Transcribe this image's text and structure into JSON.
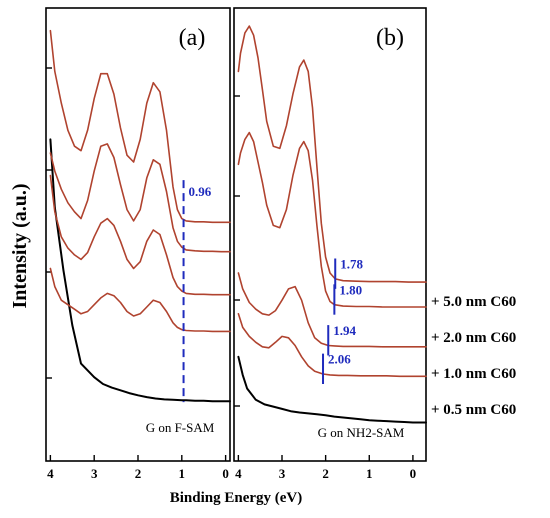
{
  "figure": {
    "ylabel": "Intensity (a.u.)",
    "xlabel": "Binding Energy (eV)",
    "thickness_labels": [
      "+ 5.0 nm C60",
      "+ 2.0 nm C60",
      "+ 1.0 nm C60",
      "+ 0.5 nm C60"
    ]
  },
  "colors": {
    "spectrum": "#b0432f",
    "substrate": "#000000",
    "onset_marker": "#1f2bbd"
  },
  "chart_data": [
    {
      "type": "line",
      "panel_label": "(a)",
      "substrate_label": "G on F-SAM",
      "xlabel": "Binding Energy (eV)",
      "ylabel": "Intensity (a.u.)",
      "xlim": [
        4.1,
        -0.1
      ],
      "x_reversed": true,
      "x_ticks": [
        4,
        3,
        2,
        1,
        0
      ],
      "ylim": [
        0,
        10
      ],
      "grid": false,
      "series": [
        {
          "x": [
            4.0,
            3.9,
            3.7,
            3.5,
            3.3,
            3.0,
            2.8,
            2.6,
            2.4,
            2.2,
            2.0,
            1.8,
            1.6,
            1.4,
            1.2,
            1.0,
            0.9,
            0.7,
            0.5,
            0.3,
            0.1,
            -0.1
          ],
          "y": [
            7.1,
            5.6,
            4.2,
            3.0,
            2.15,
            1.85,
            1.7,
            1.62,
            1.56,
            1.5,
            1.45,
            1.41,
            1.38,
            1.36,
            1.35,
            1.34,
            1.34,
            1.33,
            1.33,
            1.32,
            1.32,
            1.32
          ]
        },
        {
          "x": [
            4.0,
            3.9,
            3.75,
            3.6,
            3.45,
            3.3,
            3.15,
            3.0,
            2.85,
            2.7,
            2.55,
            2.4,
            2.25,
            2.1,
            1.95,
            1.8,
            1.65,
            1.5,
            1.35,
            1.2,
            1.1,
            1.0,
            0.9,
            0.7,
            0.5,
            0.3,
            0.1,
            -0.1
          ],
          "y": [
            4.25,
            3.85,
            3.55,
            3.45,
            3.35,
            3.25,
            3.3,
            3.45,
            3.6,
            3.7,
            3.65,
            3.5,
            3.3,
            3.2,
            3.25,
            3.4,
            3.55,
            3.5,
            3.3,
            3.05,
            2.95,
            2.9,
            2.88,
            2.87,
            2.87,
            2.86,
            2.86,
            2.86
          ]
        },
        {
          "x": [
            4.0,
            3.9,
            3.75,
            3.6,
            3.45,
            3.3,
            3.15,
            3.0,
            2.85,
            2.7,
            2.55,
            2.4,
            2.25,
            2.1,
            1.95,
            1.8,
            1.65,
            1.5,
            1.35,
            1.2,
            1.1,
            1.0,
            0.9,
            0.7,
            0.5,
            0.3,
            0.1,
            -0.1
          ],
          "y": [
            6.3,
            5.5,
            4.95,
            4.7,
            4.55,
            4.45,
            4.6,
            4.95,
            5.25,
            5.35,
            5.2,
            4.85,
            4.45,
            4.25,
            4.4,
            4.85,
            5.1,
            5.0,
            4.55,
            4.05,
            3.85,
            3.75,
            3.7,
            3.68,
            3.68,
            3.67,
            3.67,
            3.67
          ]
        },
        {
          "x": [
            4.0,
            3.9,
            3.75,
            3.6,
            3.45,
            3.3,
            3.15,
            3.0,
            2.85,
            2.7,
            2.55,
            2.4,
            2.25,
            2.1,
            1.95,
            1.8,
            1.65,
            1.5,
            1.35,
            1.2,
            1.1,
            1.0,
            0.9,
            0.7,
            0.5,
            0.3,
            0.1,
            -0.1
          ],
          "y": [
            6.8,
            6.4,
            6.0,
            5.7,
            5.5,
            5.35,
            5.75,
            6.4,
            6.95,
            7.0,
            6.7,
            6.1,
            5.55,
            5.3,
            5.55,
            6.25,
            6.65,
            6.55,
            5.95,
            5.15,
            4.85,
            4.72,
            4.66,
            4.64,
            4.63,
            4.63,
            4.62,
            4.62
          ]
        },
        {
          "x": [
            4.0,
            3.9,
            3.75,
            3.6,
            3.45,
            3.3,
            3.15,
            3.0,
            2.85,
            2.7,
            2.55,
            2.4,
            2.25,
            2.1,
            1.95,
            1.8,
            1.65,
            1.5,
            1.35,
            1.2,
            1.1,
            1.0,
            0.9,
            0.7,
            0.5,
            0.3,
            0.1,
            -0.1
          ],
          "y": [
            9.5,
            8.6,
            7.9,
            7.3,
            6.95,
            6.85,
            7.3,
            8.0,
            8.55,
            8.55,
            8.1,
            7.35,
            6.75,
            6.6,
            7.1,
            7.9,
            8.35,
            8.15,
            7.3,
            6.05,
            5.55,
            5.35,
            5.3,
            5.28,
            5.28,
            5.27,
            5.27,
            5.27
          ]
        }
      ],
      "onset_markers": [
        {
          "x": 0.96,
          "label": "0.96"
        }
      ]
    },
    {
      "type": "line",
      "panel_label": "(b)",
      "substrate_label": "G on NH2-SAM",
      "xlabel": "Binding Energy (eV)",
      "ylabel": "Intensity (a.u.)",
      "xlim": [
        4.1,
        -0.3
      ],
      "x_reversed": true,
      "x_ticks": [
        4,
        3,
        2,
        1,
        0
      ],
      "ylim": [
        0,
        10
      ],
      "grid": false,
      "series": [
        {
          "x": [
            4.0,
            3.9,
            3.8,
            3.6,
            3.4,
            3.2,
            3.0,
            2.8,
            2.6,
            2.4,
            2.2,
            2.0,
            1.8,
            1.6,
            1.4,
            1.2,
            1.0,
            0.8,
            0.6,
            0.4,
            0.2,
            0.0,
            -0.3
          ],
          "y": [
            2.3,
            1.9,
            1.6,
            1.35,
            1.25,
            1.2,
            1.15,
            1.1,
            1.07,
            1.05,
            1.03,
            1.01,
            0.98,
            0.96,
            0.94,
            0.92,
            0.9,
            0.89,
            0.88,
            0.87,
            0.86,
            0.85,
            0.85
          ]
        },
        {
          "x": [
            4.0,
            3.9,
            3.75,
            3.6,
            3.45,
            3.3,
            3.15,
            3.0,
            2.85,
            2.7,
            2.55,
            2.4,
            2.25,
            2.06,
            1.9,
            1.7,
            1.5,
            1.2,
            0.9,
            0.6,
            0.3,
            0.0,
            -0.3
          ],
          "y": [
            3.25,
            2.95,
            2.75,
            2.62,
            2.52,
            2.5,
            2.62,
            2.75,
            2.72,
            2.55,
            2.3,
            2.1,
            1.98,
            1.92,
            1.9,
            1.89,
            1.89,
            1.88,
            1.88,
            1.88,
            1.87,
            1.87,
            1.87
          ]
        },
        {
          "x": [
            4.0,
            3.9,
            3.75,
            3.6,
            3.45,
            3.3,
            3.15,
            3.0,
            2.85,
            2.7,
            2.55,
            2.4,
            2.25,
            2.1,
            1.94,
            1.8,
            1.6,
            1.3,
            1.0,
            0.7,
            0.4,
            0.1,
            -0.3
          ],
          "y": [
            4.15,
            3.8,
            3.5,
            3.35,
            3.25,
            3.22,
            3.32,
            3.55,
            3.8,
            3.85,
            3.55,
            3.05,
            2.72,
            2.6,
            2.55,
            2.54,
            2.53,
            2.53,
            2.53,
            2.52,
            2.52,
            2.52,
            2.52
          ]
        },
        {
          "x": [
            4.0,
            3.95,
            3.85,
            3.75,
            3.65,
            3.55,
            3.45,
            3.35,
            3.2,
            3.05,
            2.9,
            2.75,
            2.6,
            2.5,
            2.4,
            2.3,
            2.2,
            2.1,
            2.0,
            1.9,
            1.8,
            1.6,
            1.3,
            1.0,
            0.7,
            0.4,
            0.1,
            -0.3
          ],
          "y": [
            6.55,
            6.8,
            7.1,
            7.25,
            7.05,
            6.6,
            6.15,
            5.65,
            5.2,
            5.15,
            5.55,
            6.3,
            6.9,
            7.05,
            6.85,
            6.2,
            5.2,
            4.3,
            3.75,
            3.52,
            3.45,
            3.42,
            3.41,
            3.41,
            3.4,
            3.4,
            3.4,
            3.4
          ]
        },
        {
          "x": [
            4.0,
            3.95,
            3.85,
            3.75,
            3.65,
            3.55,
            3.45,
            3.35,
            3.2,
            3.05,
            2.9,
            2.75,
            2.6,
            2.5,
            2.4,
            2.3,
            2.2,
            2.1,
            2.0,
            1.9,
            1.78,
            1.6,
            1.3,
            1.0,
            0.7,
            0.4,
            0.1,
            -0.3
          ],
          "y": [
            8.6,
            9.0,
            9.45,
            9.6,
            9.4,
            8.9,
            8.2,
            7.5,
            6.95,
            6.9,
            7.4,
            8.1,
            8.7,
            8.85,
            8.6,
            7.8,
            6.5,
            5.25,
            4.5,
            4.15,
            4.02,
            3.98,
            3.97,
            3.96,
            3.96,
            3.96,
            3.95,
            3.95
          ]
        }
      ],
      "onset_markers": [
        {
          "x": 1.78,
          "label": "1.78"
        },
        {
          "x": 1.8,
          "label": "1.80"
        },
        {
          "x": 1.94,
          "label": "1.94"
        },
        {
          "x": 2.06,
          "label": "2.06"
        }
      ]
    }
  ]
}
